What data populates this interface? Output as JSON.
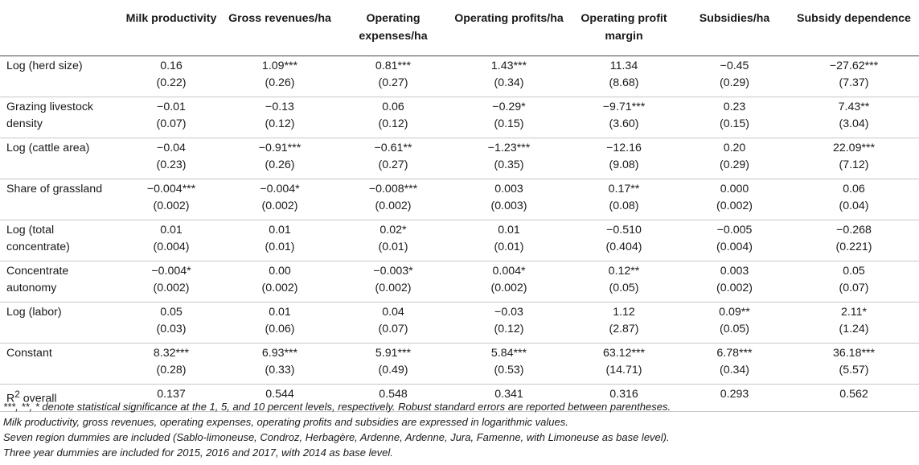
{
  "headers": [
    "",
    "Milk productivity",
    "Gross revenues/ha",
    "Operating expenses/ha",
    "Operating profits/ha",
    "Operating profit margin",
    "Subsidies/ha",
    "Subsidy dependence"
  ],
  "rows": [
    {
      "label": "Log (herd size)",
      "coef": [
        "0.16",
        "1.09***",
        "0.81***",
        "1.43***",
        "11.34",
        "−0.45",
        "−27.62***"
      ],
      "se": [
        "(0.22)",
        "(0.26)",
        "(0.27)",
        "(0.34)",
        "(8.68)",
        "(0.29)",
        "(7.37)"
      ]
    },
    {
      "label": "Grazing livestock density",
      "coef": [
        "−0.01",
        "−0.13",
        "0.06",
        "−0.29*",
        "−9.71***",
        "0.23",
        "7.43**"
      ],
      "se": [
        "(0.07)",
        "(0.12)",
        "(0.12)",
        "(0.15)",
        "(3.60)",
        "(0.15)",
        "(3.04)"
      ]
    },
    {
      "label": "Log (cattle area)",
      "coef": [
        "−0.04",
        "−0.91***",
        "−0.61**",
        "−1.23***",
        "−12.16",
        "0.20",
        "22.09***"
      ],
      "se": [
        "(0.23)",
        "(0.26)",
        "(0.27)",
        "(0.35)",
        "(9.08)",
        "(0.29)",
        "(7.12)"
      ]
    },
    {
      "label": "Share of grassland",
      "coef": [
        "−0.004***",
        "−0.004*",
        "−0.008***",
        "0.003",
        "0.17**",
        "0.000",
        "0.06"
      ],
      "se": [
        "(0.002)",
        "(0.002)",
        "(0.002)",
        "(0.003)",
        "(0.08)",
        "(0.002)",
        "(0.04)"
      ]
    },
    {
      "label": "Log (total concentrate)",
      "coef": [
        "0.01",
        "0.01",
        "0.02*",
        "0.01",
        "−0.510",
        "−0.005",
        "−0.268"
      ],
      "se": [
        "(0.004)",
        "(0.01)",
        "(0.01)",
        "(0.01)",
        "(0.404)",
        "(0.004)",
        "(0.221)"
      ]
    },
    {
      "label": "Concentrate autonomy",
      "coef": [
        "−0.004*",
        "0.00",
        "−0.003*",
        "0.004*",
        "0.12**",
        "0.003",
        "0.05"
      ],
      "se": [
        "(0.002)",
        "(0.002)",
        "(0.002)",
        "(0.002)",
        "(0.05)",
        "(0.002)",
        "(0.07)"
      ]
    },
    {
      "label": "Log (labor)",
      "coef": [
        "0.05",
        "0.01",
        "0.04",
        "−0.03",
        "1.12",
        "0.09**",
        "2.11*"
      ],
      "se": [
        "(0.03)",
        "(0.06)",
        "(0.07)",
        "(0.12)",
        "(2.87)",
        "(0.05)",
        "(1.24)"
      ]
    },
    {
      "label": "Constant",
      "coef": [
        "8.32***",
        "6.93***",
        "5.91***",
        "5.84***",
        "63.12***",
        "6.78***",
        "36.18***"
      ],
      "se": [
        "(0.28)",
        "(0.33)",
        "(0.49)",
        "(0.53)",
        "(14.71)",
        "(0.34)",
        "(5.57)"
      ]
    }
  ],
  "r2": {
    "label_main": "R",
    "label_sup": "2",
    "label_rest": " overall",
    "values": [
      "0.137",
      "0.544",
      "0.548",
      "0.341",
      "0.316",
      "0.293",
      "0.562"
    ]
  },
  "notes": [
    "***, **, * denote statistical significance at the 1, 5, and 10 percent levels, respectively. Robust standard errors are reported between parentheses.",
    "Milk productivity, gross revenues, operating expenses, operating profits and subsidies are expressed in logarithmic values.",
    "Seven region dummies are included (Sablo-limoneuse, Condroz, Herbagère, Ardenne, Ardenne, Jura, Famenne, with Limoneuse as base level).",
    "Three year dummies are included for 2015, 2016 and 2017, with 2014 as base level."
  ]
}
